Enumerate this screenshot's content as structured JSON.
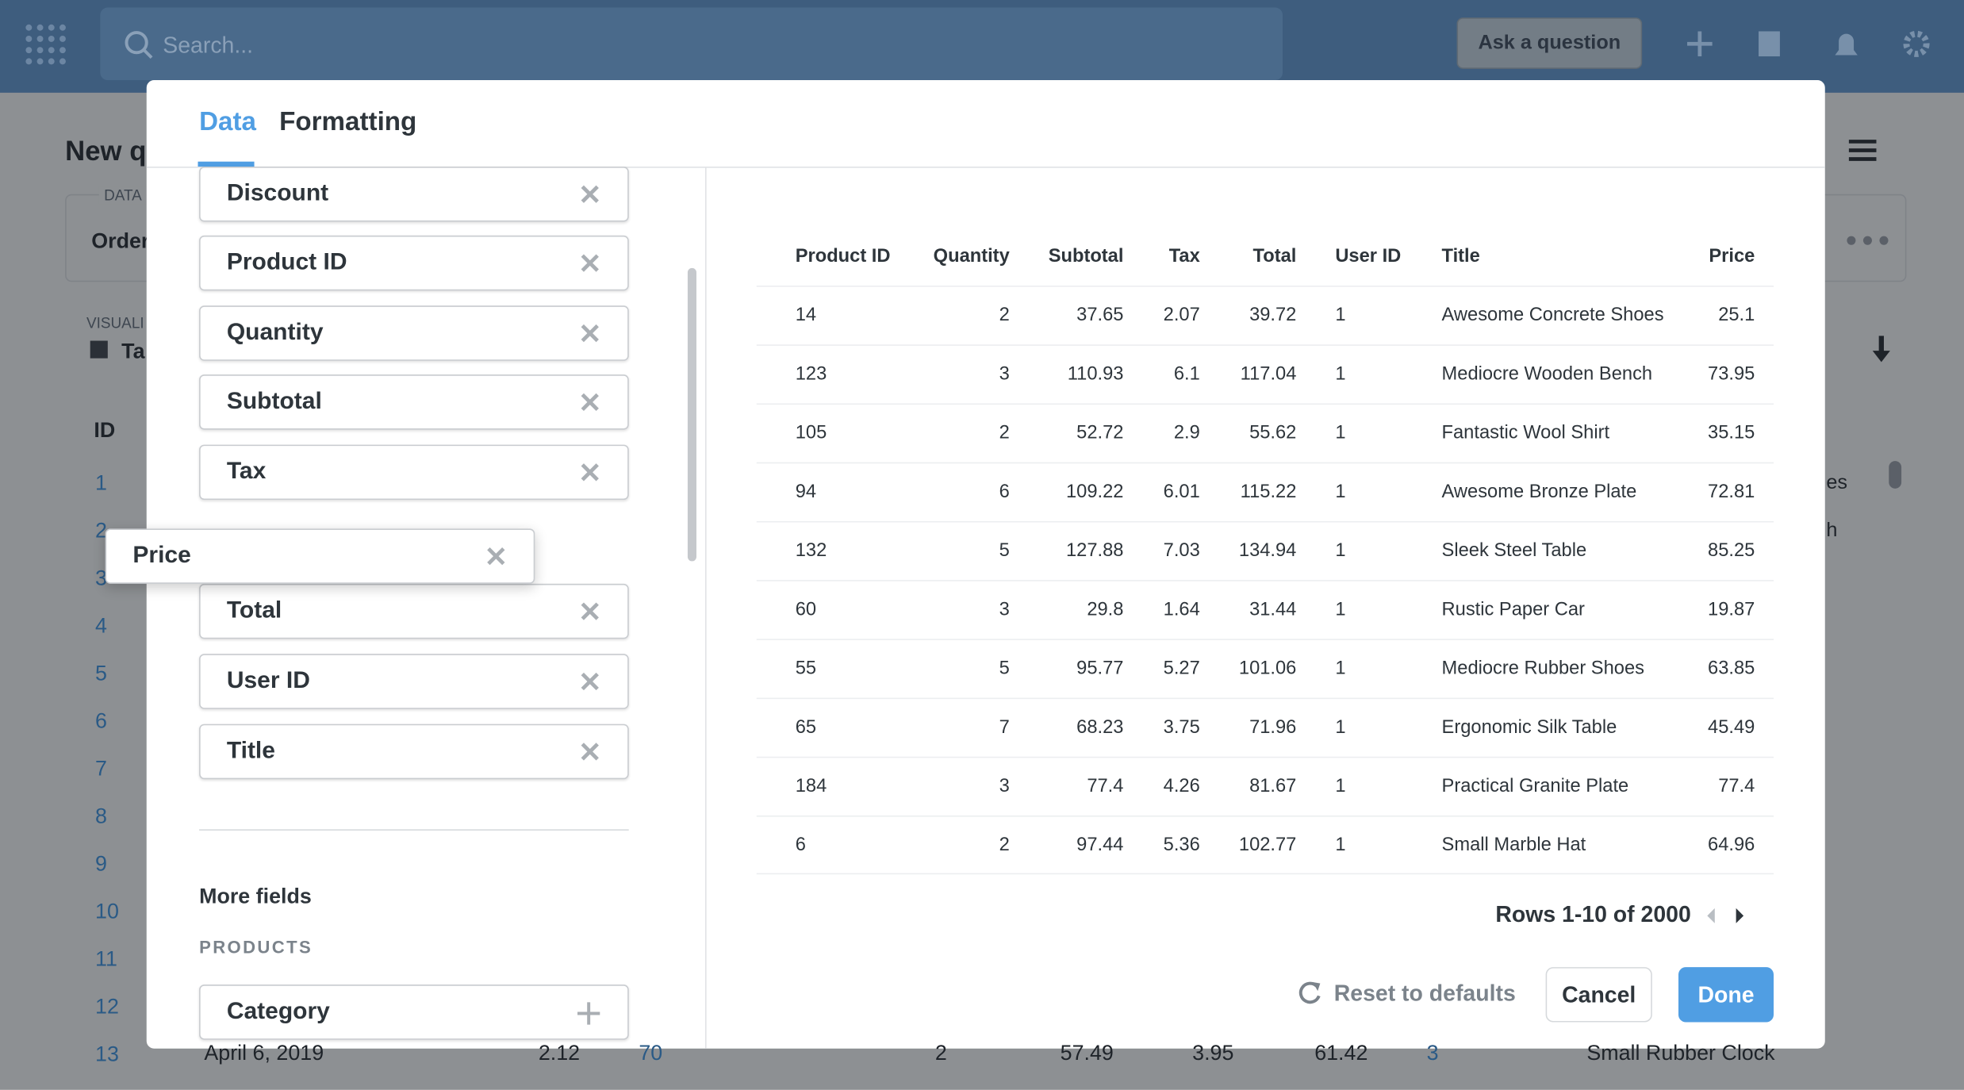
{
  "topbar": {
    "search_placeholder": "Search...",
    "ask_button": "Ask a question"
  },
  "background": {
    "title": "New q",
    "data_label": "DATA",
    "data_value": "Order",
    "visual_label": "VISUALI",
    "visual_value": "Ta",
    "id_header": "ID",
    "row_ids": [
      "1",
      "2",
      "3",
      "4",
      "5",
      "6",
      "7",
      "8",
      "9",
      "10",
      "11",
      "12",
      "13"
    ],
    "side_texts": [
      "es",
      "h"
    ],
    "last_row": [
      "April 6, 2019",
      "2.12",
      "70",
      "2",
      "57.49",
      "3.95",
      "61.42",
      "3",
      "Small Rubber Clock"
    ]
  },
  "modal": {
    "tabs": [
      "Data",
      "Formatting"
    ],
    "fields": [
      "Discount",
      "Product ID",
      "Quantity",
      "Subtotal",
      "Tax",
      "Total",
      "User ID",
      "Title"
    ],
    "dragging_field": "Price",
    "more_fields": "More fields",
    "products_label": "PRODUCTS",
    "extra_fields": [
      "Category"
    ],
    "table": {
      "columns": [
        "Product ID",
        "Quantity",
        "Subtotal",
        "Tax",
        "Total",
        "User ID",
        "Title",
        "Price"
      ],
      "rows": [
        [
          "14",
          "2",
          "37.65",
          "2.07",
          "39.72",
          "1",
          "Awesome Concrete Shoes",
          "25.1"
        ],
        [
          "123",
          "3",
          "110.93",
          "6.1",
          "117.04",
          "1",
          "Mediocre Wooden Bench",
          "73.95"
        ],
        [
          "105",
          "2",
          "52.72",
          "2.9",
          "55.62",
          "1",
          "Fantastic Wool Shirt",
          "35.15"
        ],
        [
          "94",
          "6",
          "109.22",
          "6.01",
          "115.22",
          "1",
          "Awesome Bronze Plate",
          "72.81"
        ],
        [
          "132",
          "5",
          "127.88",
          "7.03",
          "134.94",
          "1",
          "Sleek Steel Table",
          "85.25"
        ],
        [
          "60",
          "3",
          "29.8",
          "1.64",
          "31.44",
          "1",
          "Rustic Paper Car",
          "19.87"
        ],
        [
          "55",
          "5",
          "95.77",
          "5.27",
          "101.06",
          "1",
          "Mediocre Rubber Shoes",
          "63.85"
        ],
        [
          "65",
          "7",
          "68.23",
          "3.75",
          "71.96",
          "1",
          "Ergonomic Silk Table",
          "45.49"
        ],
        [
          "184",
          "3",
          "77.4",
          "4.26",
          "81.67",
          "1",
          "Practical Granite Plate",
          "77.4"
        ],
        [
          "6",
          "2",
          "97.44",
          "5.36",
          "102.77",
          "1",
          "Small Marble Hat",
          "64.96"
        ]
      ]
    },
    "pagination": "Rows 1-10 of 2000",
    "reset": "Reset to defaults",
    "cancel": "Cancel",
    "done": "Done"
  }
}
